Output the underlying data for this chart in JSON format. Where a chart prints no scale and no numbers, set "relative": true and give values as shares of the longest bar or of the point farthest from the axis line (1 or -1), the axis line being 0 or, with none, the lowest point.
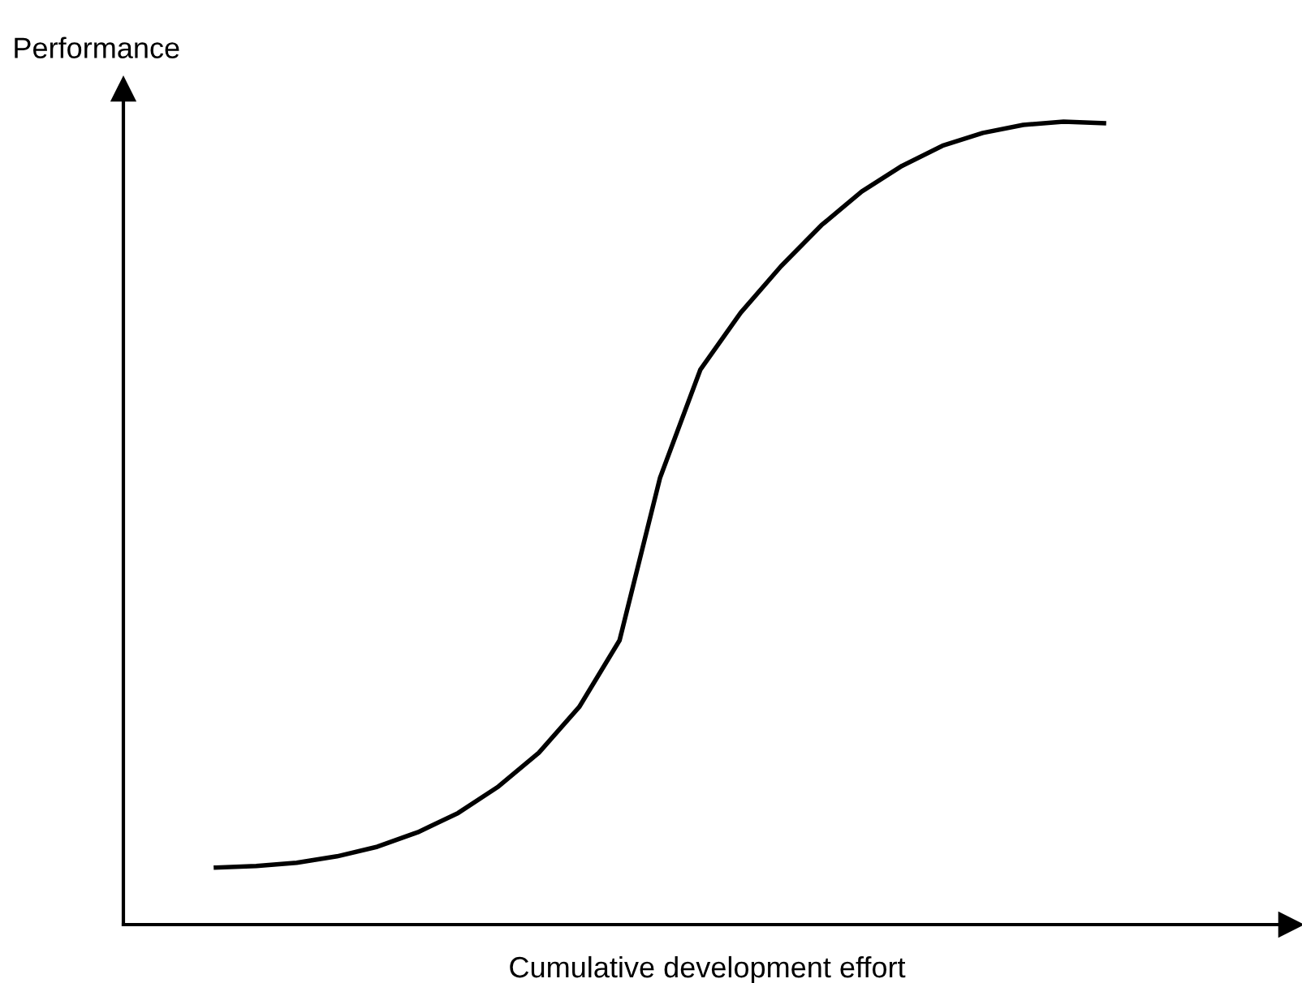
{
  "chart_data": {
    "type": "line",
    "relative": true,
    "xlabel": "Cumulative development effort",
    "ylabel": "Performance",
    "categories": [
      null,
      null,
      null,
      null,
      null,
      null,
      null,
      null,
      null,
      null,
      null,
      null,
      null,
      null,
      null,
      null,
      null,
      null,
      null,
      null,
      null,
      null,
      null
    ],
    "series": [
      {
        "color": "#000000",
        "values": [
          0.071,
          0.073,
          0.077,
          0.085,
          0.097,
          0.115,
          0.139,
          0.172,
          0.214,
          0.271,
          0.354,
          0.556,
          0.691,
          0.762,
          0.82,
          0.871,
          0.913,
          0.945,
          0.97,
          0.986,
          0.996,
          1.0,
          0.998
        ]
      }
    ],
    "marker": "none",
    "line_style": "solid"
  }
}
